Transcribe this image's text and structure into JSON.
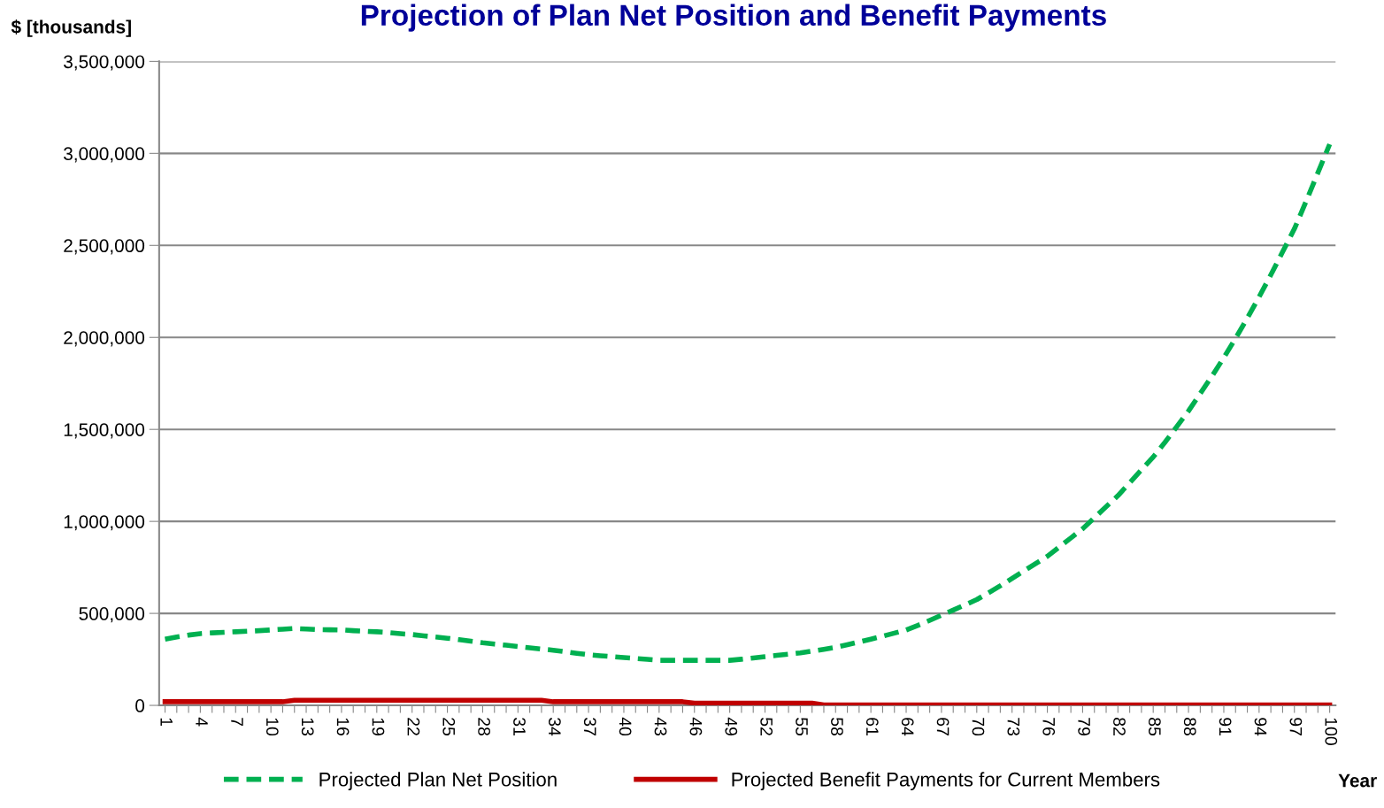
{
  "chart_data": {
    "type": "line",
    "title": "Projection of Plan Net Position and Benefit Payments",
    "ylabel": "$ [thousands]",
    "xlabel": "Year",
    "categories": [
      "1",
      null,
      null,
      "4",
      null,
      null,
      "7",
      null,
      null,
      "10",
      null,
      null,
      "13",
      null,
      null,
      "16",
      null,
      null,
      "19",
      null,
      null,
      "22",
      null,
      null,
      "25",
      null,
      null,
      "28",
      null,
      null,
      "31",
      null,
      null,
      "34",
      null,
      null,
      "37",
      null,
      null,
      "40",
      null,
      null,
      "43",
      null,
      null,
      "46",
      null,
      null,
      "49",
      null,
      null,
      "52",
      null,
      null,
      "55",
      null,
      null,
      "58",
      null,
      null,
      "61",
      null,
      null,
      "64",
      null,
      null,
      "67",
      null,
      null,
      "70",
      null,
      null,
      "73",
      null,
      null,
      "76",
      null,
      null,
      "79",
      null,
      null,
      "82",
      null,
      null,
      "85",
      null,
      null,
      "88",
      null,
      null,
      "91",
      null,
      null,
      "94",
      null,
      null,
      "97",
      null,
      null,
      "100"
    ],
    "series": [
      {
        "name": "Projected Plan Net Position",
        "color": "#00b050",
        "line_style": "dashed",
        "values": [
          360000,
          372000,
          382000,
          390000,
          394000,
          397000,
          400000,
          403000,
          406000,
          410000,
          414000,
          418000,
          415000,
          412000,
          411000,
          410000,
          406000,
          403000,
          400000,
          396000,
          390000,
          385000,
          378000,
          372000,
          365000,
          357000,
          349000,
          340000,
          333000,
          327000,
          320000,
          313000,
          306000,
          300000,
          292000,
          283000,
          275000,
          270000,
          265000,
          260000,
          255000,
          250000,
          245000,
          245000,
          245000,
          245000,
          245000,
          245000,
          245000,
          251000,
          258000,
          265000,
          272000,
          278000,
          285000,
          295000,
          305000,
          315000,
          330000,
          345000,
          360000,
          376000,
          393000,
          410000,
          435000,
          462000,
          490000,
          518000,
          546000,
          575000,
          612000,
          650000,
          690000,
          730000,
          770000,
          810000,
          860000,
          910000,
          960000,
          1020000,
          1080000,
          1140000,
          1210000,
          1280000,
          1350000,
          1430000,
          1515000,
          1600000,
          1695000,
          1790000,
          1890000,
          1995000,
          2105000,
          2220000,
          2340000,
          2465000,
          2590000,
          2740000,
          2895000,
          3050000
        ]
      },
      {
        "name": "Projected Benefit Payments for Current Members",
        "color": "#c00000",
        "line_style": "solid",
        "values": [
          20000,
          20000,
          20000,
          20000,
          20000,
          20000,
          20000,
          20000,
          20000,
          20000,
          20000,
          28000,
          28000,
          28000,
          28000,
          28000,
          28000,
          28000,
          28000,
          28000,
          28000,
          28000,
          28000,
          28000,
          28000,
          28000,
          28000,
          28000,
          28000,
          28000,
          28000,
          28000,
          28000,
          20000,
          20000,
          20000,
          20000,
          20000,
          20000,
          20000,
          20000,
          20000,
          20000,
          20000,
          20000,
          12000,
          12000,
          12000,
          12000,
          12000,
          12000,
          12000,
          12000,
          12000,
          12000,
          12000,
          3000,
          3000,
          3000,
          3000,
          3000,
          3000,
          3000,
          3000,
          3000,
          3000,
          3000,
          3000,
          3000,
          3000,
          3000,
          3000,
          3000,
          3000,
          3000,
          3000,
          3000,
          3000,
          3000,
          3000,
          3000,
          3000,
          3000,
          3000,
          3000,
          3000,
          3000,
          3000,
          3000,
          3000,
          3000,
          3000,
          3000,
          3000,
          3000,
          3000,
          3000,
          3000,
          3000,
          3000
        ]
      }
    ],
    "ylim": [
      0,
      3500000
    ],
    "yticks": [
      {
        "value": 0,
        "label": "0"
      },
      {
        "value": 500000,
        "label": "500,000"
      },
      {
        "value": 1000000,
        "label": "1,000,000"
      },
      {
        "value": 1500000,
        "label": "1,500,000"
      },
      {
        "value": 2000000,
        "label": "2,000,000"
      },
      {
        "value": 2500000,
        "label": "2,500,000"
      },
      {
        "value": 3000000,
        "label": "3,000,000"
      },
      {
        "value": 3500000,
        "label": "3,500,000"
      }
    ],
    "grid": "y",
    "legend": "bottom",
    "marker": "none"
  }
}
